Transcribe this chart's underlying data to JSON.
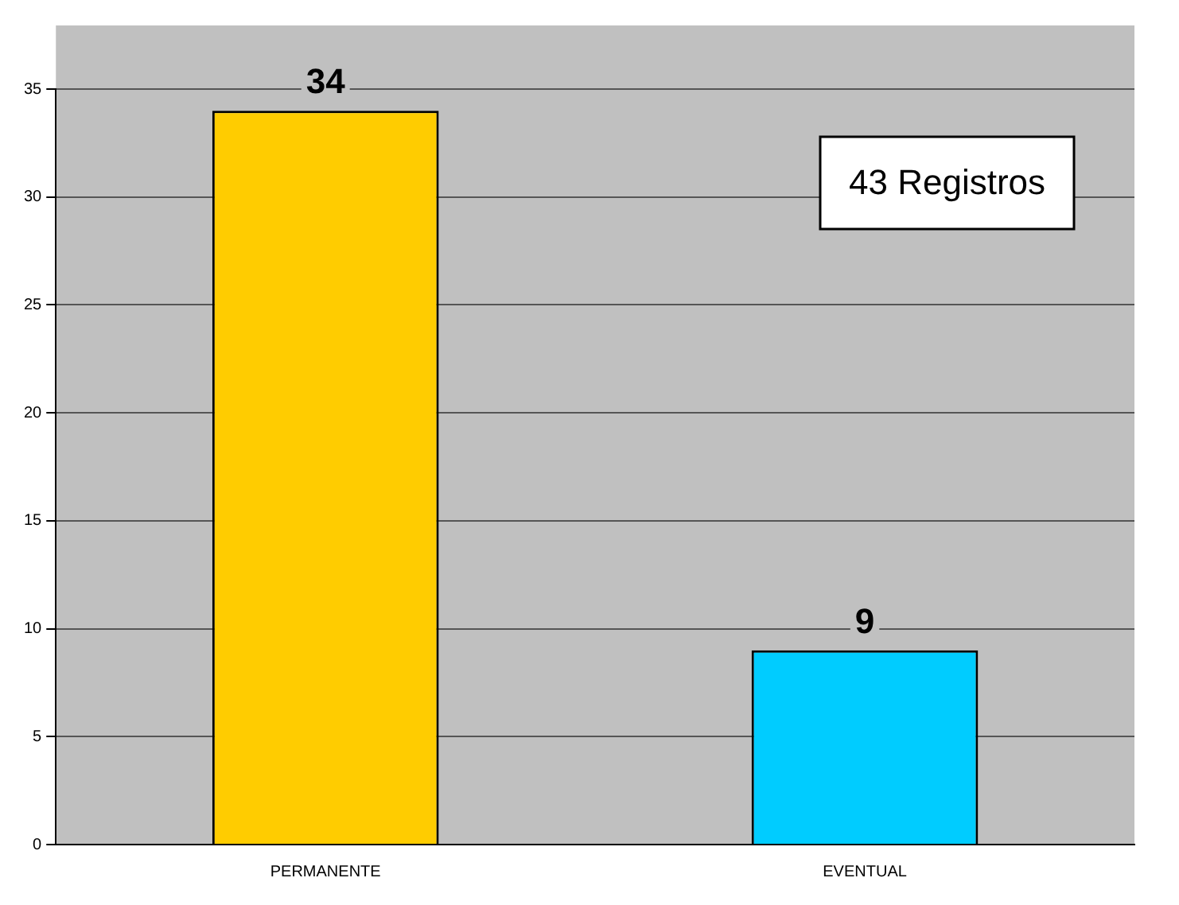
{
  "chart_data": {
    "type": "bar",
    "categories": [
      "PERMANENTE",
      "EVENTUAL"
    ],
    "values": [
      34,
      9
    ],
    "colors": [
      "#ffcc00",
      "#00ccff"
    ],
    "ylim": [
      0,
      35
    ],
    "yticks": [
      0,
      5,
      10,
      15,
      20,
      25,
      30,
      35
    ],
    "grid": "y",
    "legend": false,
    "data_labels": true,
    "annotations": [
      "43 Registros"
    ]
  }
}
